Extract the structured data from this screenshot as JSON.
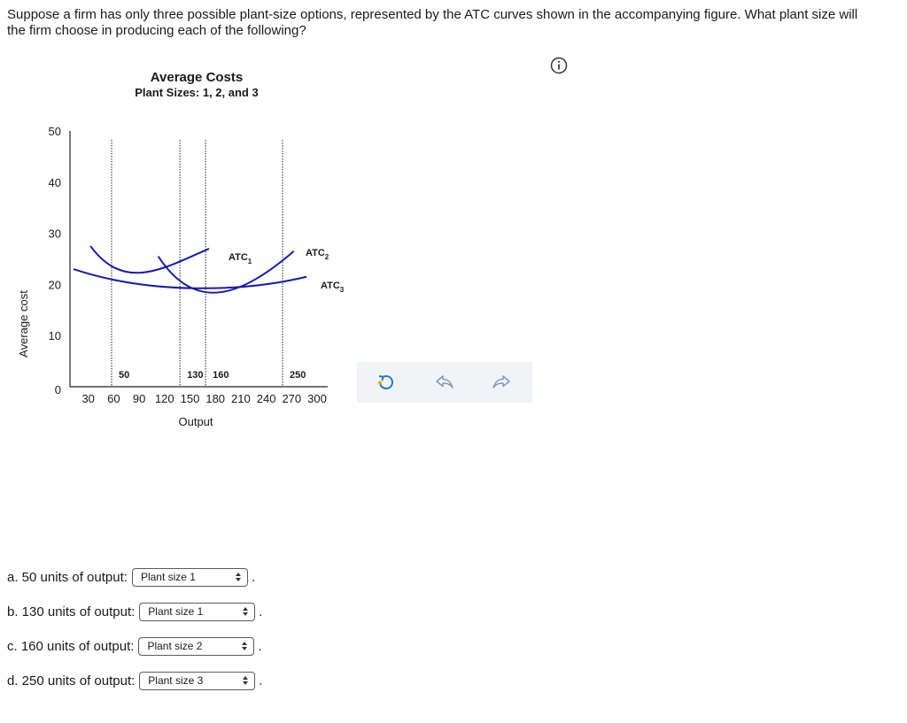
{
  "question": "Suppose a firm has only three possible plant-size options, represented by the ATC curves shown in the accompanying figure. What plant size will the firm choose in producing each of the following?",
  "icons": {
    "info": "info-icon",
    "reset": "reset-icon",
    "undo": "undo-icon",
    "redo": "redo-icon"
  },
  "colors": {
    "curve": "#1a1aa8",
    "guide": "#555555",
    "toolbar_bg": "#f1f4f7",
    "reset_accent": "#f0a500"
  },
  "chart_data": {
    "type": "line",
    "title": "Average Costs",
    "subtitle": "Plant Sizes: 1, 2, and 3",
    "xlabel": "Output",
    "ylabel": "Average cost",
    "xlim": [
      0,
      300
    ],
    "ylim": [
      0,
      50
    ],
    "x_ticks": [
      30,
      60,
      90,
      120,
      150,
      180,
      210,
      240,
      270,
      300
    ],
    "y_ticks": [
      0,
      10,
      20,
      30,
      40,
      50
    ],
    "series": [
      {
        "name": "ATC",
        "subscript": "1",
        "points": [
          [
            20,
            27.5
          ],
          [
            60,
            18.5
          ],
          [
            105,
            23
          ],
          [
            160,
            27
          ]
        ]
      },
      {
        "name": "ATC",
        "subscript": "2",
        "points": [
          [
            100,
            25.5
          ],
          [
            145,
            14
          ],
          [
            200,
            18
          ],
          [
            260,
            26.5
          ]
        ]
      },
      {
        "name": "ATC",
        "subscript": "3",
        "points": [
          [
            0,
            23
          ],
          [
            90,
            18
          ],
          [
            200,
            18.5
          ],
          [
            275,
            21.5
          ]
        ]
      }
    ],
    "guides": [
      {
        "x": 50,
        "label": "50"
      },
      {
        "x": 130,
        "label": "130"
      },
      {
        "x": 160,
        "label": "160"
      },
      {
        "x": 250,
        "label": "250"
      }
    ]
  },
  "answers": [
    {
      "label": "a. 50 units of output:",
      "value": "Plant size 1"
    },
    {
      "label": "b. 130 units of output:",
      "value": "Plant size 1"
    },
    {
      "label": "c. 160 units of output:",
      "value": "Plant size 2"
    },
    {
      "label": "d. 250 units of output:",
      "value": "Plant size 3"
    }
  ],
  "answer_suffix": "."
}
